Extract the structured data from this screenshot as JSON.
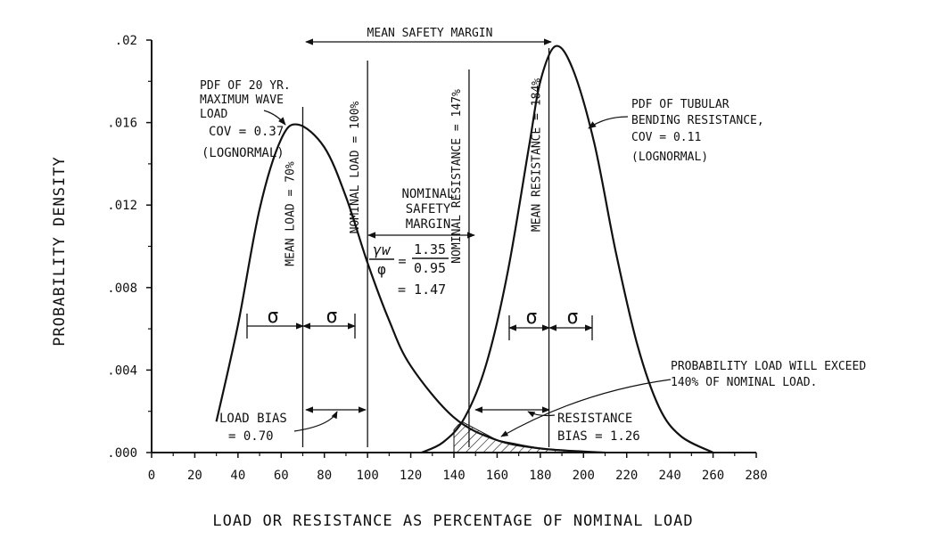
{
  "chart_data": {
    "type": "line",
    "xlabel": "LOAD OR RESISTANCE AS PERCENTAGE OF NOMINAL LOAD",
    "ylabel": "PROBABILITY DENSITY",
    "xlim": [
      0,
      280
    ],
    "ylim": [
      0,
      0.02
    ],
    "xticks": [
      "0",
      "20",
      "40",
      "60",
      "80",
      "100",
      "120",
      "140",
      "160",
      "180",
      "200",
      "220",
      "240",
      "260",
      "280"
    ],
    "yticks": [
      ".000",
      ".004",
      ".008",
      ".012",
      ".016",
      ".02"
    ],
    "series": [
      {
        "name": "PDF OF 20 YR. MAXIMUM WAVE LOAD",
        "x": [
          30,
          40,
          50,
          60,
          68,
          80,
          90,
          100,
          110,
          120,
          140,
          160,
          180,
          200,
          210
        ],
        "y": [
          0.0015,
          0.0062,
          0.0118,
          0.0152,
          0.0159,
          0.0148,
          0.0124,
          0.0092,
          0.0064,
          0.0042,
          0.0017,
          0.0006,
          0.0002,
          5e-05,
          0.0
        ]
      },
      {
        "name": "PDF OF TUBULAR BENDING RESISTANCE",
        "x": [
          125,
          135,
          145,
          155,
          165,
          175,
          180,
          187,
          195,
          205,
          215,
          225,
          235,
          245,
          260
        ],
        "y": [
          0.0,
          0.0005,
          0.0017,
          0.0043,
          0.0088,
          0.015,
          0.018,
          0.0197,
          0.0186,
          0.015,
          0.0097,
          0.0052,
          0.0022,
          0.0008,
          0.0
        ]
      }
    ],
    "hatched_region": [
      140,
      200
    ],
    "reference_lines": [
      {
        "x": 70,
        "label": "MEAN LOAD = 70%"
      },
      {
        "x": 100,
        "label": "NOMINAL LOAD = 100%"
      },
      {
        "x": 147,
        "label": "NOMINAL RESISTANCE = 147%"
      },
      {
        "x": 184,
        "label": "MEAN RESISTANCE = 184%"
      }
    ],
    "annotations": {
      "load_pdf": [
        "PDF OF 20 YR.",
        "MAXIMUM WAVE",
        "LOAD",
        "COV = 0.37",
        "(LOGNORMAL)"
      ],
      "resistance_pdf": [
        "PDF OF TUBULAR",
        "BENDING RESISTANCE,",
        "COV = 0.11",
        "(LOGNORMAL)"
      ],
      "mean_safety_margin": "MEAN SAFETY MARGIN",
      "nominal_safety_margin": [
        "NOMINAL",
        "SAFETY",
        "MARGIN"
      ],
      "ratio_lhs_num": "γw",
      "ratio_lhs_den": "φ",
      "ratio_eq": "=",
      "ratio_rhs_num": "1.35",
      "ratio_rhs_den": "0.95",
      "ratio_result": "= 1.47",
      "exceedance": [
        "PROBABILITY LOAD WILL EXCEED",
        "140% OF NOMINAL LOAD."
      ],
      "load_bias": [
        "LOAD BIAS",
        "= 0.70"
      ],
      "resistance_bias": [
        "RESISTANCE",
        "BIAS = 1.26"
      ],
      "sigma": "σ"
    }
  }
}
